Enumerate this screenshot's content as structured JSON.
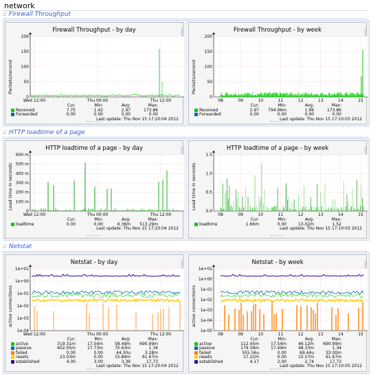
{
  "page": {
    "title": "network"
  },
  "sections": [
    {
      "title": ":: Firewall Throughput"
    },
    {
      "title": ":: HTTP loadtime of a page"
    },
    {
      "title": ":: Netstat"
    }
  ],
  "side_label": "PROTOCOL / TOBI OETIKER",
  "munin_label": "Munin 2.0.7",
  "legend_headers": [
    "Cur:",
    "Min:",
    "Avg:",
    "Max:"
  ],
  "graphs": {
    "fw_day": {
      "title": "Firewall Throughput - by day",
      "ylabel": "Packets/second",
      "yticks": [
        "200",
        "150",
        "100",
        "50",
        "0"
      ],
      "xticks": [
        "Wed 12:00",
        "Thu 00:00",
        "Thu 12:00"
      ],
      "legend": [
        {
          "name": "Received",
          "color": "#00cc00",
          "cur": "7.75",
          "min": "1.42",
          "avg": "2.97",
          "max": "173.86"
        },
        {
          "name": "Forwarded",
          "color": "#0066b3",
          "cur": "0.00",
          "min": "0.00",
          "avg": "0.00",
          "max": "0.00"
        }
      ],
      "last_update": "Last update: Thu Nov 15 17:20:04 2012"
    },
    "fw_week": {
      "title": "Firewall Throughput - by week",
      "ylabel": "Packets/second",
      "yticks": [
        "200",
        "150",
        "100",
        "50",
        "0"
      ],
      "xticks": [
        "08",
        "09",
        "10",
        "11",
        "12",
        "13",
        "14",
        "15"
      ],
      "legend": [
        {
          "name": "Received",
          "color": "#00cc00",
          "cur": "2.97",
          "min": "794.96m",
          "avg": "1.99",
          "max": "173.86"
        },
        {
          "name": "Forwarded",
          "color": "#0066b3",
          "cur": "0.00",
          "min": "0.00",
          "avg": "0.00",
          "max": "0.00"
        }
      ],
      "last_update": "Last update: Thu Nov 15 17:10:03 2012"
    },
    "http_day": {
      "title": "HTTP loadtime of a page - by day",
      "ylabel": "Load time in seconds",
      "yticks": [
        "600 m",
        "500 m",
        "400 m",
        "300 m",
        "200 m",
        "100 m",
        "0"
      ],
      "xticks": [
        "Wed 12:00",
        "Thu 00:00",
        "Thu 12:00"
      ],
      "legend": [
        {
          "name": "loadtime",
          "color": "#00cc00",
          "cur": "0.00",
          "min": "0.00",
          "avg": "6.36m",
          "max": "513.29m"
        }
      ],
      "last_update": "Last update: Thu Nov 15 17:20:04 2012"
    },
    "http_week": {
      "title": "HTTP loadtime of a page - by week",
      "ylabel": "Load time in seconds",
      "yticks": [
        "1.5",
        "1.0",
        "0.5",
        "0.0"
      ],
      "xticks": [
        "08",
        "09",
        "10",
        "11",
        "12",
        "13",
        "14",
        "15"
      ],
      "legend": [
        {
          "name": "loadtime",
          "color": "#00cc00",
          "cur": "1.66m",
          "min": "0.00",
          "avg": "13.02m",
          "max": "1.52"
        }
      ],
      "last_update": "Last update: Thu Nov 15 17:10:03 2012"
    },
    "net_day": {
      "title": "Netstat - by day",
      "ylabel": "active connections",
      "yticks": [
        "1e+01",
        "1e+00",
        "1e-01",
        "1e-02",
        "1e-03",
        "1e-04"
      ],
      "xticks": [
        "Wed 12:00",
        "Thu 00:00",
        "Thu 12:00"
      ],
      "legend": [
        {
          "name": "active",
          "color": "#00cc00",
          "cur": "319.31m",
          "min": "17.54m",
          "avg": "58.49m",
          "max": "690.99m"
        },
        {
          "name": "passive",
          "color": "#0066b3",
          "cur": "602.05m",
          "min": "17.73m",
          "avg": "70.63m",
          "max": "1.34"
        },
        {
          "name": "failed",
          "color": "#ff8000",
          "cur": "0.00",
          "min": "0.00",
          "avg": "44.30u",
          "max": "3.28m"
        },
        {
          "name": "resets",
          "color": "#ffcc00",
          "cur": "23.03m",
          "min": "0.00",
          "avg": "15.84m",
          "max": "61.67m"
        },
        {
          "name": "established",
          "color": "#330099",
          "cur": "4.00",
          "min": "3.00",
          "avg": "3.39",
          "max": "17.73"
        }
      ],
      "last_update": "Last update: Thu Nov 15 17:20:04 2012"
    },
    "net_week": {
      "title": "Netstat - by week",
      "ylabel": "active connections",
      "yticks": [
        "1e+01",
        "1e+00",
        "1e-01",
        "1e-02",
        "1e-03",
        "1e-04",
        "1e-05"
      ],
      "xticks": [
        "08",
        "09",
        "10",
        "11",
        "12",
        "13",
        "14",
        "15"
      ],
      "legend": [
        {
          "name": "active",
          "color": "#00cc00",
          "cur": "112.45m",
          "min": "17.54m",
          "avg": "46.12m",
          "max": "690.99m"
        },
        {
          "name": "passive",
          "color": "#0066b3",
          "cur": "179.39m",
          "min": "17.49m",
          "avg": "48.33m",
          "max": "1.34"
        },
        {
          "name": "failed",
          "color": "#ff8000",
          "cur": "555.56u",
          "min": "0.00",
          "avg": "69.44u",
          "max": "33.00m"
        },
        {
          "name": "resets",
          "color": "#ffcc00",
          "cur": "17.22m",
          "min": "0.00",
          "avg": "15.57m",
          "max": "61.67m"
        },
        {
          "name": "established",
          "color": "#330099",
          "cur": "4.17",
          "min": "2.00",
          "avg": "2.74",
          "max": "17.73"
        }
      ],
      "last_update": "Last update: Thu Nov 15 17:10:05 2012"
    }
  }
}
